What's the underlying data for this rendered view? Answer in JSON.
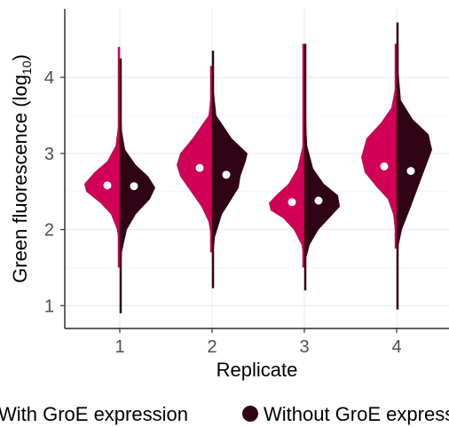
{
  "chart_data": {
    "type": "split-violin",
    "xlabel": "Replicate",
    "ylabel": "Green fluorescence (log",
    "ylabel_sub": "10",
    "ylabel_end": ")",
    "categories": [
      "1",
      "2",
      "3",
      "4"
    ],
    "y_ticks": [
      "1",
      "2",
      "3",
      "4"
    ],
    "ylim": [
      0.7,
      4.9
    ],
    "grid": true,
    "legend_position": "bottom",
    "series": [
      {
        "name": "With GroE expression",
        "color": "#d10056",
        "medians": [
          2.58,
          2.81,
          2.36,
          2.83
        ],
        "ranges": [
          [
            1.5,
            4.4
          ],
          [
            1.7,
            4.15
          ],
          [
            1.5,
            4.44
          ],
          [
            1.75,
            4.44
          ]
        ],
        "profiles": [
          [
            [
              1.5,
              0.0
            ],
            [
              1.8,
              0.02
            ],
            [
              2.0,
              0.08
            ],
            [
              2.2,
              0.25
            ],
            [
              2.35,
              0.55
            ],
            [
              2.5,
              0.95
            ],
            [
              2.6,
              1.0
            ],
            [
              2.75,
              0.72
            ],
            [
              2.9,
              0.35
            ],
            [
              3.1,
              0.12
            ],
            [
              3.4,
              0.04
            ],
            [
              3.8,
              0.02
            ],
            [
              4.4,
              0.0
            ]
          ],
          [
            [
              1.7,
              0.0
            ],
            [
              1.9,
              0.03
            ],
            [
              2.1,
              0.1
            ],
            [
              2.3,
              0.3
            ],
            [
              2.5,
              0.6
            ],
            [
              2.7,
              0.9
            ],
            [
              2.85,
              1.0
            ],
            [
              3.0,
              0.9
            ],
            [
              3.2,
              0.55
            ],
            [
              3.5,
              0.1
            ],
            [
              3.8,
              0.03
            ],
            [
              4.15,
              0.0
            ]
          ],
          [
            [
              1.5,
              0.0
            ],
            [
              1.8,
              0.08
            ],
            [
              2.0,
              0.3
            ],
            [
              2.15,
              0.6
            ],
            [
              2.25,
              0.95
            ],
            [
              2.35,
              1.0
            ],
            [
              2.45,
              0.8
            ],
            [
              2.6,
              0.45
            ],
            [
              2.8,
              0.2
            ],
            [
              3.1,
              0.05
            ],
            [
              3.6,
              0.02
            ],
            [
              4.44,
              0.0
            ]
          ],
          [
            [
              1.75,
              0.0
            ],
            [
              2.0,
              0.05
            ],
            [
              2.2,
              0.1
            ],
            [
              2.4,
              0.25
            ],
            [
              2.55,
              0.55
            ],
            [
              2.75,
              0.9
            ],
            [
              2.95,
              1.0
            ],
            [
              3.2,
              0.85
            ],
            [
              3.4,
              0.45
            ],
            [
              3.6,
              0.15
            ],
            [
              3.9,
              0.03
            ],
            [
              4.44,
              0.0
            ]
          ]
        ]
      },
      {
        "name": "Without GroE expression",
        "color": "#2f0414",
        "medians": [
          2.57,
          2.72,
          2.38,
          2.77
        ],
        "ranges": [
          [
            0.9,
            4.25
          ],
          [
            1.23,
            4.35
          ],
          [
            1.2,
            4.44
          ],
          [
            0.95,
            4.72
          ]
        ],
        "profiles": [
          [
            [
              0.9,
              0.0
            ],
            [
              1.3,
              0.02
            ],
            [
              1.7,
              0.06
            ],
            [
              2.0,
              0.2
            ],
            [
              2.2,
              0.45
            ],
            [
              2.4,
              0.85
            ],
            [
              2.55,
              1.0
            ],
            [
              2.7,
              0.8
            ],
            [
              2.85,
              0.45
            ],
            [
              3.05,
              0.15
            ],
            [
              3.3,
              0.06
            ],
            [
              3.8,
              0.02
            ],
            [
              4.25,
              0.0
            ]
          ],
          [
            [
              1.23,
              0.0
            ],
            [
              1.6,
              0.02
            ],
            [
              1.9,
              0.08
            ],
            [
              2.2,
              0.28
            ],
            [
              2.4,
              0.55
            ],
            [
              2.55,
              0.75
            ],
            [
              2.7,
              0.8
            ],
            [
              2.9,
              0.95
            ],
            [
              3.0,
              1.0
            ],
            [
              3.2,
              0.55
            ],
            [
              3.5,
              0.12
            ],
            [
              3.9,
              0.03
            ],
            [
              4.35,
              0.0
            ]
          ],
          [
            [
              1.2,
              0.0
            ],
            [
              1.6,
              0.04
            ],
            [
              1.8,
              0.15
            ],
            [
              2.0,
              0.4
            ],
            [
              2.15,
              0.7
            ],
            [
              2.3,
              1.0
            ],
            [
              2.45,
              0.95
            ],
            [
              2.6,
              0.55
            ],
            [
              2.8,
              0.25
            ],
            [
              3.1,
              0.08
            ],
            [
              3.6,
              0.03
            ],
            [
              4.44,
              0.0
            ]
          ],
          [
            [
              0.95,
              0.0
            ],
            [
              1.5,
              0.02
            ],
            [
              1.8,
              0.06
            ],
            [
              2.0,
              0.15
            ],
            [
              2.3,
              0.4
            ],
            [
              2.55,
              0.6
            ],
            [
              2.8,
              0.8
            ],
            [
              3.05,
              1.0
            ],
            [
              3.25,
              0.9
            ],
            [
              3.45,
              0.45
            ],
            [
              3.7,
              0.12
            ],
            [
              4.2,
              0.03
            ],
            [
              4.72,
              0.0
            ]
          ]
        ]
      }
    ]
  }
}
